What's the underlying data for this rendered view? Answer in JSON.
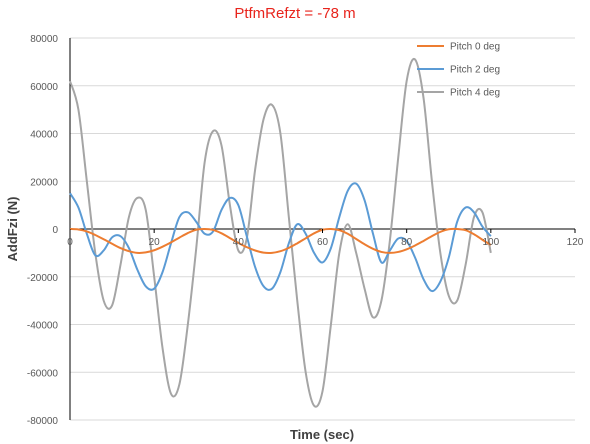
{
  "chart_data": {
    "type": "line",
    "title": "PtfmRefzt = -78 m",
    "xlabel": "Time (sec)",
    "ylabel": "AddFzi  (N)",
    "xlim": [
      0,
      120
    ],
    "ylim": [
      -80000,
      80000
    ],
    "x_ticks": [
      "0",
      "20",
      "40",
      "60",
      "80",
      "100",
      "120"
    ],
    "y_ticks": [
      "80000",
      "60000",
      "40000",
      "20000",
      "0",
      "-20000",
      "-40000",
      "-60000",
      "-80000"
    ],
    "grid": "horizontal",
    "legend_position": "top-right",
    "x": [
      0,
      2,
      4,
      6,
      8,
      10,
      12,
      14,
      16,
      18,
      20,
      22,
      24,
      26,
      28,
      30,
      32,
      34,
      36,
      38,
      40,
      42,
      44,
      46,
      48,
      50,
      52,
      54,
      56,
      58,
      60,
      62,
      64,
      66,
      68,
      70,
      72,
      74,
      76,
      78,
      80,
      82,
      84,
      86,
      88,
      90,
      92,
      94,
      96,
      98,
      100
    ],
    "series": [
      {
        "name": "Pitch 0 deg",
        "color": "#ED7D31",
        "values": [
          0,
          -200,
          -1000,
          -2500,
          -4300,
          -6200,
          -8000,
          -9300,
          -10000,
          -9800,
          -8900,
          -7400,
          -5600,
          -3600,
          -1700,
          -300,
          0,
          -400,
          -1800,
          -3800,
          -5800,
          -7600,
          -9000,
          -9900,
          -10000,
          -9300,
          -7900,
          -6000,
          -3900,
          -1800,
          -300,
          0,
          -500,
          -2000,
          -4200,
          -6400,
          -8300,
          -9600,
          -10000,
          -9600,
          -8500,
          -6900,
          -5000,
          -3000,
          -1200,
          -100,
          0,
          -500,
          -2200,
          -4500,
          -6700
        ]
      },
      {
        "name": "Pitch 2 deg",
        "color": "#5B9BD5",
        "values": [
          15000,
          9000,
          -2000,
          -11000,
          -9000,
          -3500,
          -3000,
          -8000,
          -17000,
          -24000,
          -25000,
          -18000,
          -6000,
          5000,
          7000,
          3000,
          -2000,
          -1000,
          8000,
          13000,
          10000,
          -3000,
          -16000,
          -24000,
          -25000,
          -18000,
          -6000,
          2000,
          -2000,
          -10000,
          -14000,
          -8000,
          5000,
          16000,
          19000,
          12000,
          -2000,
          -14000,
          -9000,
          -4000,
          -5000,
          -12000,
          -21000,
          -26000,
          -22000,
          -12000,
          3000,
          9000,
          7000,
          1000,
          -3000
        ]
      },
      {
        "name": "Pitch 4 deg",
        "color": "#A5A5A5",
        "values": [
          62000,
          50000,
          20000,
          -10000,
          -30000,
          -32000,
          -15000,
          5000,
          13000,
          8000,
          -20000,
          -50000,
          -69000,
          -65000,
          -40000,
          -8000,
          28000,
          41000,
          35000,
          10000,
          -9000,
          -4000,
          25000,
          46000,
          52000,
          40000,
          5000,
          -30000,
          -60000,
          -74000,
          -68000,
          -40000,
          -10000,
          2000,
          -10000,
          -25000,
          -37000,
          -30000,
          -5000,
          30000,
          62000,
          71000,
          55000,
          20000,
          -10000,
          -28000,
          -30000,
          -15000,
          5000,
          7000,
          -10000
        ]
      }
    ]
  }
}
